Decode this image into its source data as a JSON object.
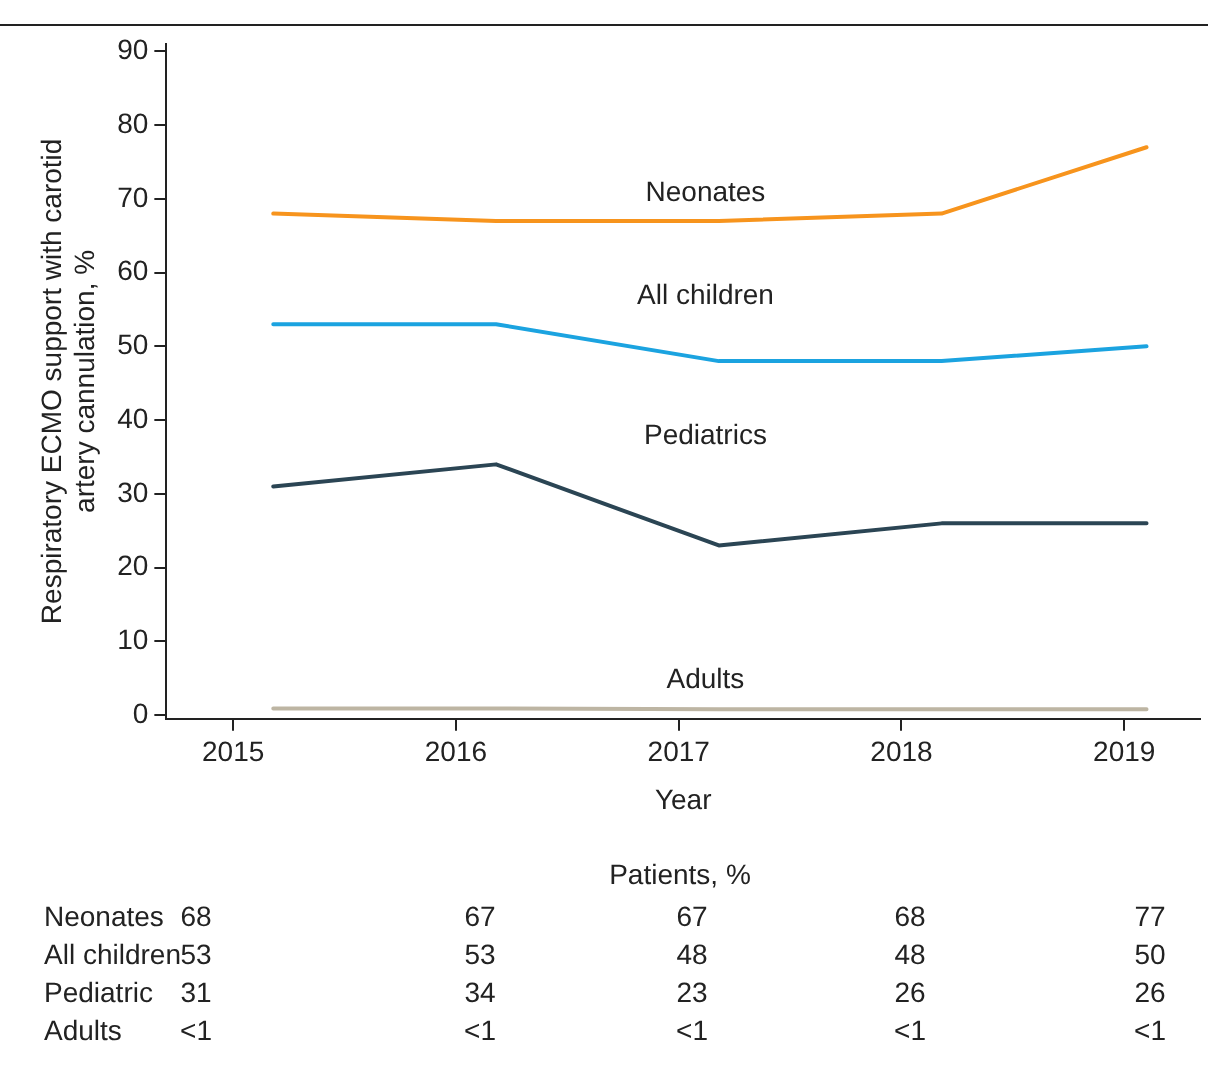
{
  "chart_data": {
    "type": "line",
    "xlabel": "Year",
    "ylabel": "Respiratory ECMO support with carotid artery cannulation, %",
    "x": [
      2015.18,
      2016.18,
      2017.18,
      2018.18,
      2019.1
    ],
    "xlim": [
      2014.7,
      2019.34
    ],
    "xticks": [
      2015,
      2016,
      2017,
      2018,
      2019
    ],
    "ylim": [
      -0.5,
      91
    ],
    "yticks": [
      0,
      10,
      20,
      30,
      40,
      50,
      60,
      70,
      80,
      90
    ],
    "series": [
      {
        "name": "Neonates",
        "color": "#f7941d",
        "values": [
          68,
          67,
          67,
          68,
          77
        ]
      },
      {
        "name": "All children",
        "color": "#1ba3e0",
        "values": [
          53,
          53,
          48,
          48,
          50
        ]
      },
      {
        "name": "Pediatrics",
        "color": "#2b4554",
        "values": [
          31,
          34,
          23,
          26,
          26
        ]
      },
      {
        "name": "Adults",
        "color": "#bdb5a3",
        "values": [
          0.9,
          0.9,
          0.8,
          0.8,
          0.8
        ]
      }
    ],
    "annotations": [
      "Patients, %",
      "Neonates",
      "68",
      "67",
      "67",
      "68",
      "77",
      "All children",
      "53",
      "53",
      "48",
      "48",
      "50",
      "Pediatric",
      "31",
      "34",
      "23",
      "26",
      "26",
      "Adults",
      "<1",
      "<1",
      "<1",
      "<1",
      "<1"
    ],
    "grid": false,
    "legend": false,
    "marker": "none",
    "line_style": "solid"
  }
}
